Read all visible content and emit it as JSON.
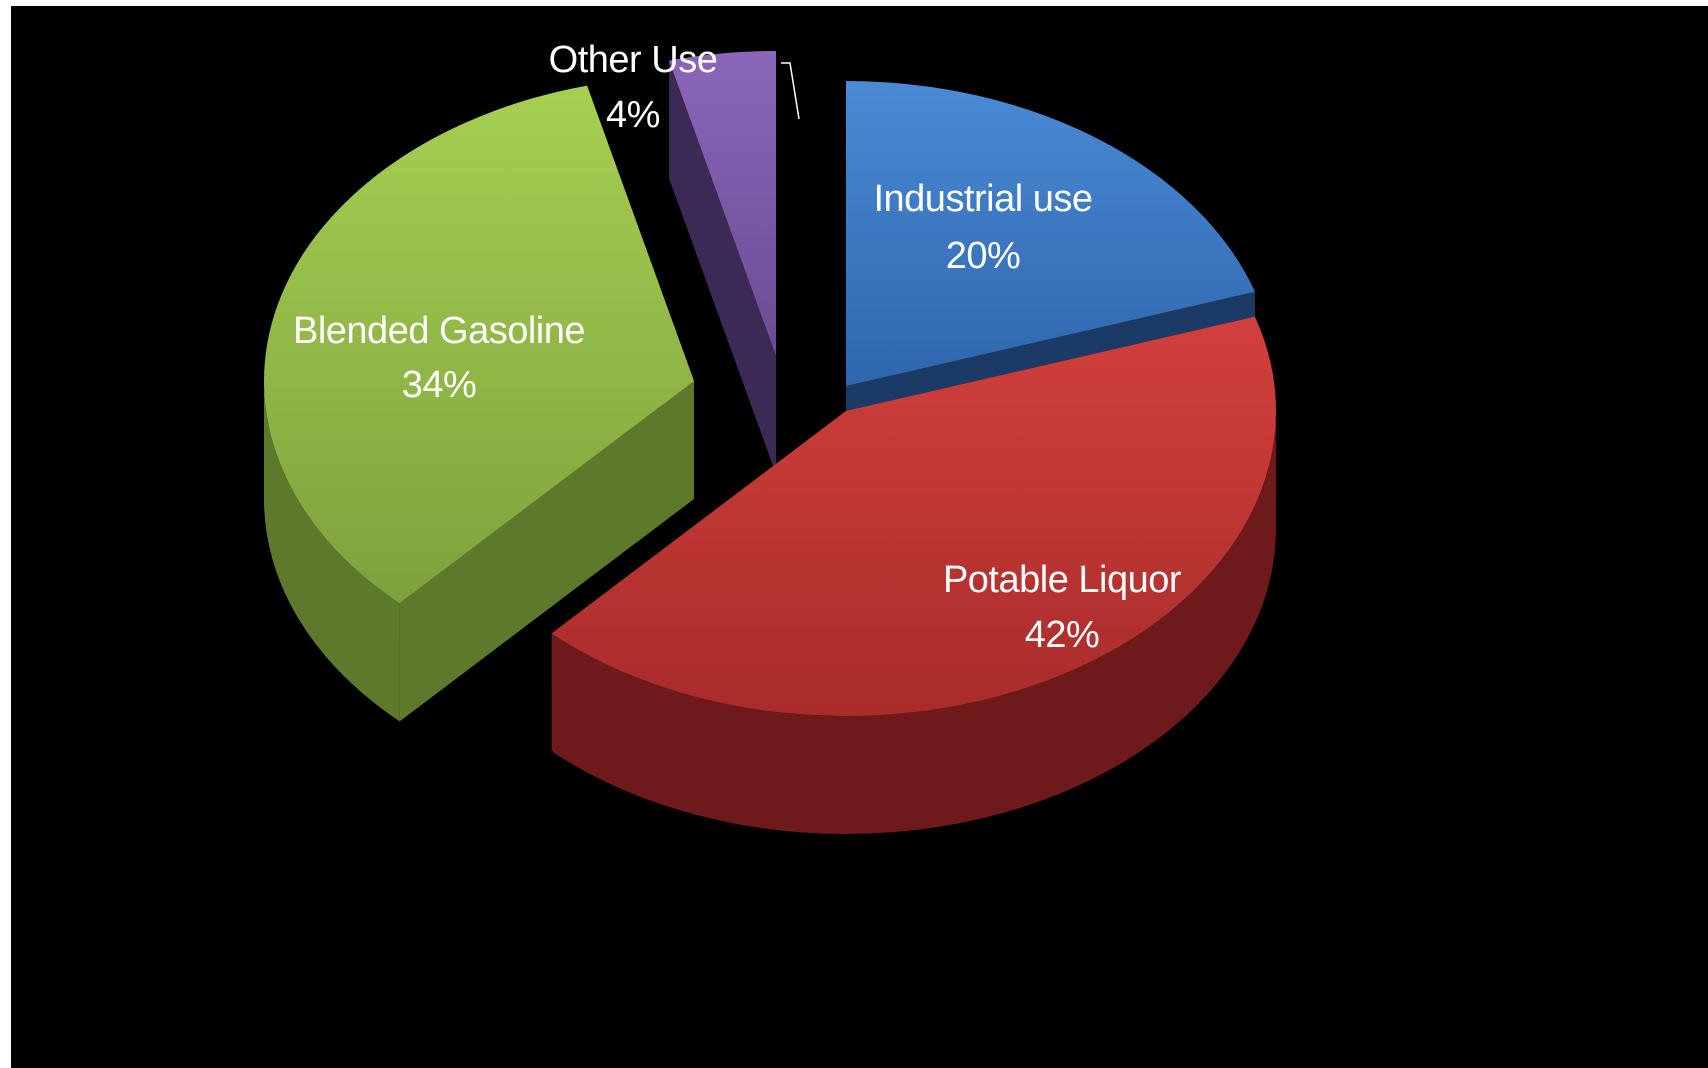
{
  "chart_data": {
    "type": "pie",
    "three_d": true,
    "exploded": true,
    "background": "#000000",
    "slices": [
      {
        "name": "Industrial use",
        "value": 20,
        "label": "20%",
        "color": "#3d79c6",
        "side_color": "#1c3a66"
      },
      {
        "name": "Potable Liquor",
        "value": 42,
        "label": "42%",
        "color": "#c63a37",
        "side_color": "#6e1a1a"
      },
      {
        "name": "Blended Gasoline",
        "value": 34,
        "label": "34%",
        "color": "#97c04a",
        "side_color": "#5d7a2c"
      },
      {
        "name": "Other Use",
        "value": 4,
        "label": "4%",
        "color": "#7a58a6",
        "side_color": "#3a2a55"
      }
    ]
  }
}
